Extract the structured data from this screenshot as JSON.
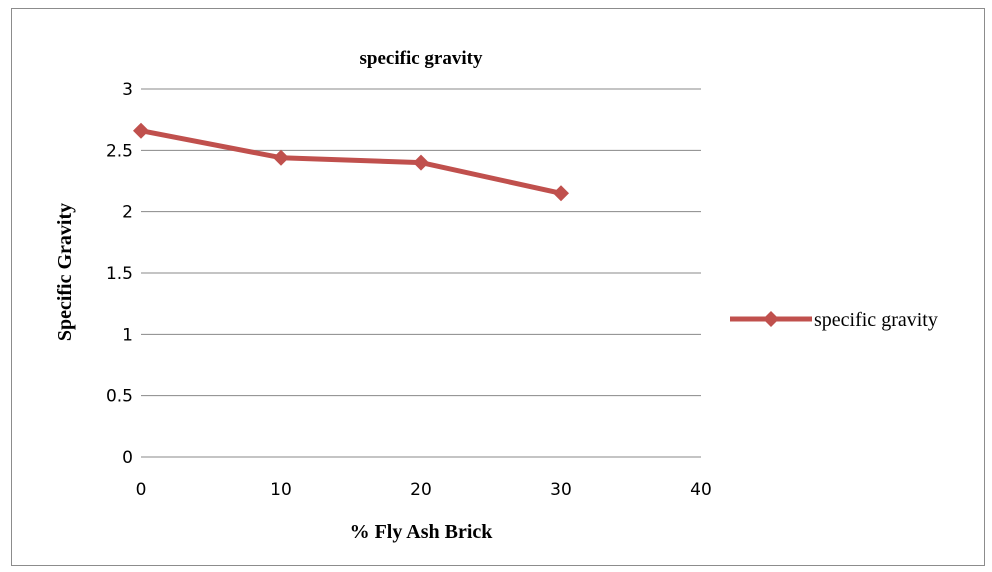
{
  "chart_data": {
    "type": "line",
    "title": "specific gravity",
    "xlabel": "% Fly Ash Brick",
    "ylabel": "Specific Gravity",
    "xlim": [
      0,
      40
    ],
    "ylim": [
      0,
      3
    ],
    "xticks": [
      0,
      10,
      20,
      30,
      40
    ],
    "yticks": [
      0,
      0.5,
      1,
      1.5,
      2,
      2.5,
      3
    ],
    "x_tick_labels": [
      "0",
      "10",
      "20",
      "30",
      "40"
    ],
    "y_tick_labels": [
      "0",
      "0.5",
      "1",
      "1.5",
      "2",
      "2.5",
      "3"
    ],
    "grid": "horizontal",
    "legend_position": "right",
    "series": [
      {
        "name": "specific gravity",
        "color": "#c0504d",
        "marker": "diamond",
        "x": [
          0,
          10,
          20,
          30
        ],
        "y": [
          2.66,
          2.44,
          2.4,
          2.15
        ]
      }
    ]
  }
}
